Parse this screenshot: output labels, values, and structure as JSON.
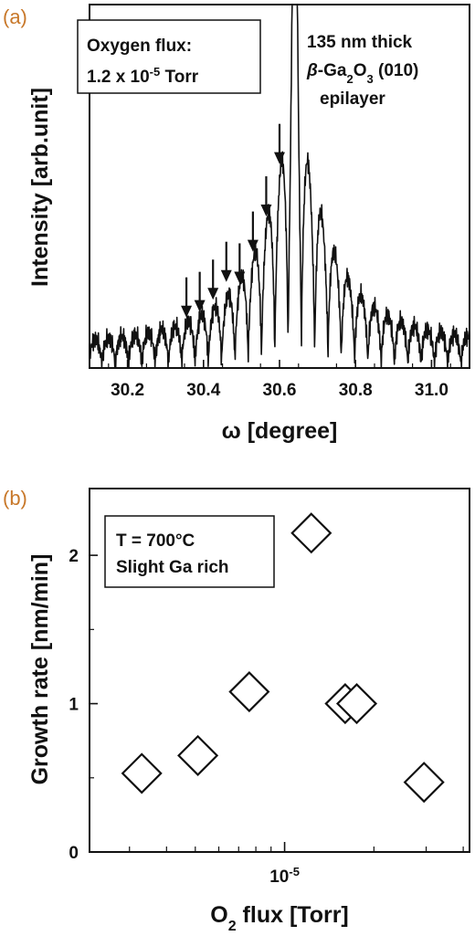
{
  "chart_data": [
    {
      "panel_label": "(a)",
      "type": "line",
      "xlabel": "ω  [degree]",
      "ylabel": "Intensity [arb.unit]",
      "xlim": [
        30.1,
        31.1
      ],
      "ylim": [
        0,
        1
      ],
      "x_ticks": [
        "30.2",
        "30.4",
        "30.6",
        "30.8",
        "31.0"
      ],
      "x_tick_values": [
        30.2,
        30.4,
        30.6,
        30.8,
        31.0
      ],
      "peak_center": 30.64,
      "fringe_period": 0.035,
      "arrow_x": [
        30.355,
        30.39,
        30.425,
        30.46,
        30.495,
        30.53,
        30.565,
        30.6
      ],
      "box_text": {
        "line1": "Oxygen flux:",
        "line2_prefix": "1.2 x 10",
        "line2_exp": "-5",
        "line2_suffix": " Torr"
      },
      "sample_text": {
        "line1": "135 nm thick",
        "line2_beta": "β",
        "line2_a": "-Ga",
        "line2_sub1": "2",
        "line2_b": "O",
        "line2_sub2": "3",
        "line2_c": " (010)",
        "line3": "epilayer"
      }
    },
    {
      "panel_label": "(b)",
      "type": "scatter",
      "xlabel_prefix": "O",
      "xlabel_sub": "2",
      "xlabel_suffix": " flux [Torr]",
      "ylabel": "Growth rate [nm/min]",
      "x_scale": "log",
      "xlim": [
        2.2e-06,
        4.2e-05
      ],
      "ylim": [
        0,
        2.45
      ],
      "y_ticks": [
        "0",
        "1",
        "2"
      ],
      "y_tick_values": [
        0,
        1,
        2
      ],
      "x_major_tick": {
        "base": "10",
        "exp": "-5",
        "value": 1e-05
      },
      "x_minor_ticks": [
        3e-06,
        4e-06,
        5e-06,
        6e-06,
        7e-06,
        8e-06,
        9e-06,
        2e-05,
        3e-05,
        4e-05
      ],
      "points": [
        {
          "x": 3.3e-06,
          "y": 0.53
        },
        {
          "x": 5.1e-06,
          "y": 0.65
        },
        {
          "x": 7.6e-06,
          "y": 1.08
        },
        {
          "x": 1.23e-05,
          "y": 2.15
        },
        {
          "x": 1.6e-05,
          "y": 1.0
        },
        {
          "x": 1.75e-05,
          "y": 1.0
        },
        {
          "x": 2.95e-05,
          "y": 0.47
        }
      ],
      "box_text": {
        "line1": "T = 700°C",
        "line2": "Slight Ga rich"
      }
    }
  ]
}
